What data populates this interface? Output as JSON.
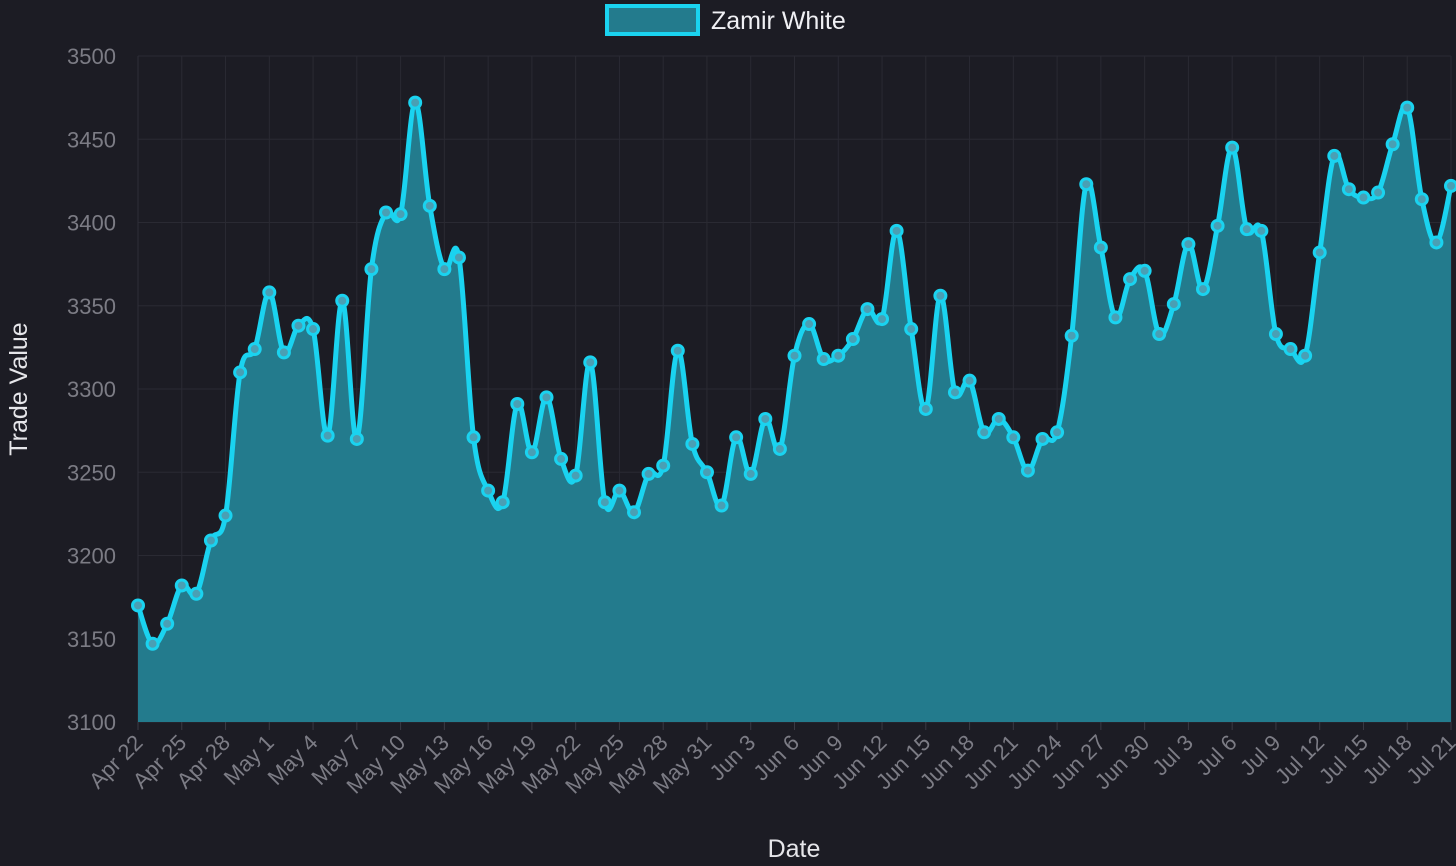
{
  "chart_data": {
    "type": "area",
    "title": "",
    "xlabel": "Date",
    "ylabel": "Trade Value",
    "ylim": [
      3100,
      3500
    ],
    "yticks": [
      3100,
      3150,
      3200,
      3250,
      3300,
      3350,
      3400,
      3450,
      3500
    ],
    "grid": true,
    "legend_position": "top-center",
    "series": [
      {
        "name": "Zamir White",
        "line_color": "#1ad3f0",
        "fill_color": "#237b8d",
        "values": [
          3170,
          3147,
          3159,
          3182,
          3177,
          3209,
          3224,
          3310,
          3324,
          3358,
          3322,
          3338,
          3336,
          3272,
          3353,
          3270,
          3372,
          3406,
          3405,
          3472,
          3410,
          3372,
          3379,
          3271,
          3239,
          3232,
          3291,
          3262,
          3295,
          3258,
          3248,
          3316,
          3232,
          3239,
          3226,
          3249,
          3254,
          3323,
          3267,
          3250,
          3230,
          3271,
          3249,
          3282,
          3264,
          3320,
          3339,
          3318,
          3320,
          3330,
          3348,
          3342,
          3395,
          3336,
          3288,
          3356,
          3298,
          3305,
          3274,
          3282,
          3271,
          3251,
          3270,
          3274,
          3332,
          3423,
          3385,
          3343,
          3366,
          3371,
          3333,
          3351,
          3387,
          3360,
          3398,
          3445,
          3396,
          3395,
          3333,
          3324,
          3320,
          3382,
          3440,
          3420,
          3415,
          3418,
          3447,
          3469,
          3414,
          3388,
          3422
        ]
      }
    ],
    "x_start": "Apr 22",
    "x_tick_labels": [
      "Apr 22",
      "Apr 25",
      "Apr 28",
      "May 1",
      "May 4",
      "May 7",
      "May 10",
      "May 13",
      "May 16",
      "May 19",
      "May 22",
      "May 25",
      "May 28",
      "May 31",
      "Jun 3",
      "Jun 6",
      "Jun 9",
      "Jun 12",
      "Jun 15",
      "Jun 18",
      "Jun 21",
      "Jun 24",
      "Jun 27",
      "Jun 30",
      "Jul 3",
      "Jul 6",
      "Jul 9",
      "Jul 12",
      "Jul 15",
      "Jul 18",
      "Jul 21"
    ],
    "x_tick_every_n_points": 3
  }
}
